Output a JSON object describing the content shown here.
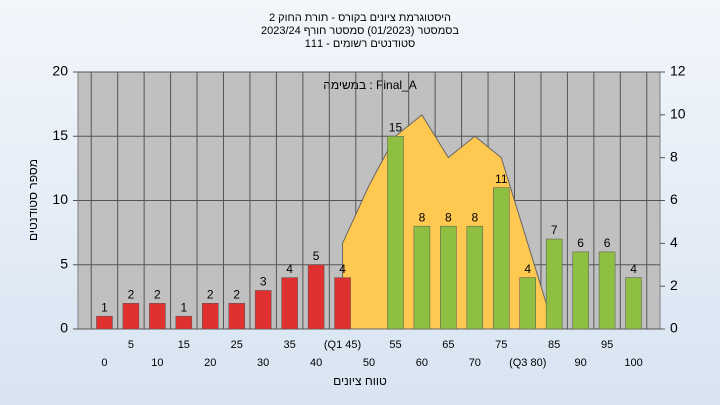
{
  "chart_data": {
    "type": "bar",
    "title": "היסטוגרמת ציונים בקורס - תורת החוק 2",
    "subtitle": "בסמסטר  (01/2023)  סמסטר חורף 2023/24",
    "subtitle2": "סטודנטים רשומים - 111",
    "annotation": "במשימה : Final_A",
    "x_label": "טווח ציונים",
    "y_label": "מספר סטודנטים",
    "categories": [
      "0",
      "5",
      "10",
      "15",
      "20",
      "25",
      "30",
      "35",
      "40",
      "(Q1 45)",
      "50",
      "55",
      "60",
      "65",
      "70",
      "75",
      "(Q3 80)",
      "85",
      "90",
      "95",
      "100"
    ],
    "values": [
      1,
      2,
      2,
      1,
      2,
      2,
      3,
      4,
      5,
      4,
      null,
      15,
      8,
      8,
      8,
      11,
      4,
      7,
      6,
      6,
      4
    ],
    "bar_colors": [
      "#e03030",
      "#e03030",
      "#e03030",
      "#e03030",
      "#e03030",
      "#e03030",
      "#e03030",
      "#e03030",
      "#e03030",
      "#e03030",
      "#e03030",
      "#8fbf40",
      "#8fbf40",
      "#8fbf40",
      "#8fbf40",
      "#8fbf40",
      "#8fbf40",
      "#8fbf40",
      "#8fbf40",
      "#8fbf40",
      "#8fbf40"
    ],
    "area": {
      "color": "#ffc850",
      "axis": "y2",
      "values": [
        null,
        null,
        null,
        null,
        null,
        null,
        null,
        null,
        null,
        4,
        6.7,
        9,
        10,
        8,
        9,
        8,
        4,
        0,
        null,
        null,
        null
      ]
    },
    "ylim": [
      0,
      20
    ],
    "yticks": [
      0,
      5,
      10,
      15,
      20
    ],
    "y2lim": [
      0,
      12
    ],
    "y2ticks": [
      0,
      2,
      4,
      6,
      8,
      10,
      12
    ],
    "grid": true
  }
}
